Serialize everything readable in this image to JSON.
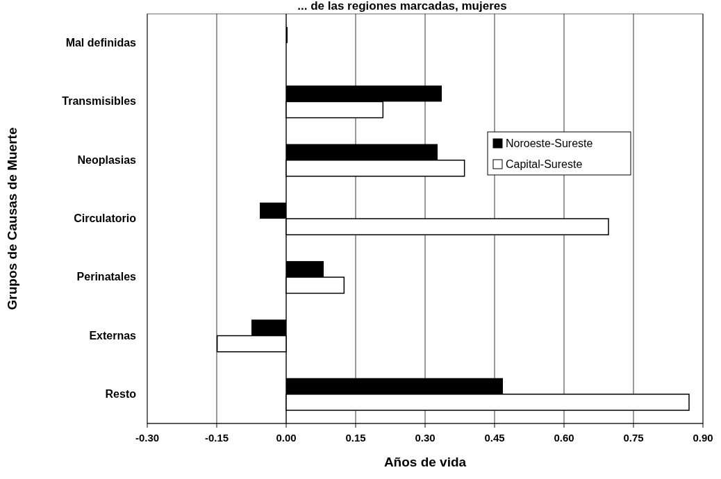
{
  "chart_data": {
    "type": "bar",
    "orientation": "horizontal",
    "title": "... de las regiones marcadas, mujeres",
    "xlabel": "Años de vida",
    "ylabel": "Grupos de Causas de Muerte",
    "categories": [
      "Mal definidas",
      "Transmisibles",
      "Neoplasias",
      "Circulatorio",
      "Perinatales",
      "Externas",
      "Resto"
    ],
    "series": [
      {
        "name": "Noroeste-Sureste",
        "color": "#000000",
        "values": [
          0.003,
          0.336,
          0.327,
          -0.057,
          0.081,
          -0.075,
          0.468
        ]
      },
      {
        "name": "Capital-Sureste",
        "color": "#ffffff",
        "values": [
          null,
          0.209,
          0.385,
          0.696,
          0.125,
          -0.149,
          0.87
        ]
      }
    ],
    "xlim": [
      -0.3,
      0.9
    ],
    "xticks": [
      {
        "value": -0.3,
        "label": "-0.30"
      },
      {
        "value": -0.15,
        "label": "-0.15"
      },
      {
        "value": 0,
        "label": "0.00"
      },
      {
        "value": 0.15,
        "label": "0.15"
      },
      {
        "value": 0.3,
        "label": "0.30"
      },
      {
        "value": 0.45,
        "label": "0.45"
      },
      {
        "value": 0.6,
        "label": "0.60"
      },
      {
        "value": 0.75,
        "label": "0.75"
      },
      {
        "value": 0.9,
        "label": "0.90"
      }
    ],
    "grid": "x",
    "legend": "right"
  }
}
